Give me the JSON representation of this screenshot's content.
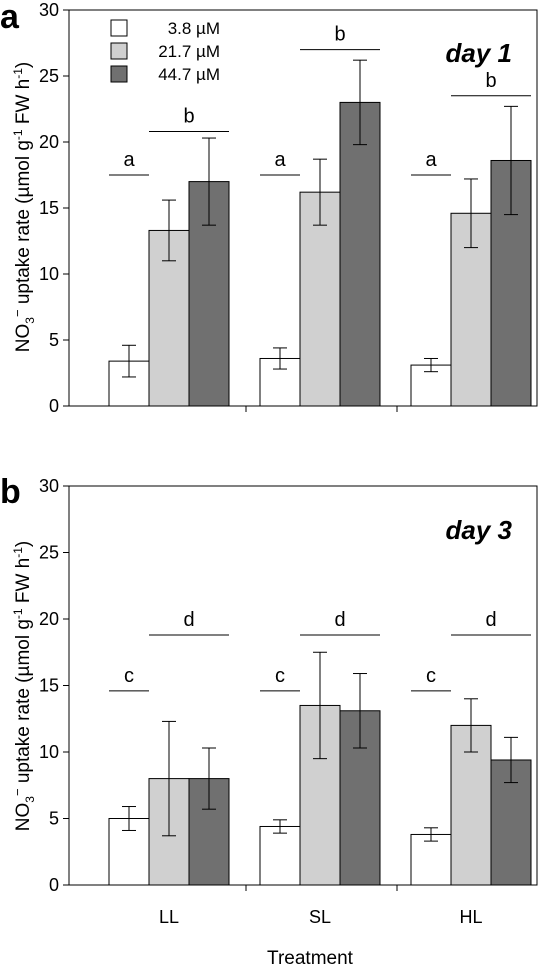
{
  "chart_data": [
    {
      "type": "bar",
      "panel_letter": "a",
      "annotation": "day 1",
      "categories": [
        "LL",
        "SL",
        "HL"
      ],
      "series": [
        {
          "name": "3.8 µM",
          "values": [
            3.4,
            3.6,
            3.1
          ],
          "errors": [
            1.2,
            0.8,
            0.5
          ],
          "color": "#ffffff"
        },
        {
          "name": "21.7 µM",
          "values": [
            13.3,
            16.2,
            14.6
          ],
          "errors": [
            2.3,
            2.5,
            2.6
          ],
          "color": "#d0d0d0"
        },
        {
          "name": "44.7 µM",
          "values": [
            17.0,
            23.0,
            18.6
          ],
          "errors": [
            3.3,
            3.2,
            4.1
          ],
          "color": "#707070"
        }
      ],
      "yticks": [
        "0",
        "5",
        "10",
        "15",
        "20",
        "25",
        "30"
      ],
      "ylim": [
        0,
        30
      ],
      "legend_position": "top-left",
      "sig_labels": [
        {
          "letter": "a",
          "category": "LL",
          "span": "low",
          "level": 17.5
        },
        {
          "letter": "b",
          "category": "LL",
          "span": "high",
          "level": 20.8
        },
        {
          "letter": "a",
          "category": "SL",
          "span": "low",
          "level": 17.5
        },
        {
          "letter": "b",
          "category": "SL",
          "span": "high",
          "level": 27.0
        },
        {
          "letter": "a",
          "category": "HL",
          "span": "low",
          "level": 17.5
        },
        {
          "letter": "b",
          "category": "HL",
          "span": "high",
          "level": 23.5
        }
      ]
    },
    {
      "type": "bar",
      "panel_letter": "b",
      "annotation": "day 3",
      "categories": [
        "LL",
        "SL",
        "HL"
      ],
      "series": [
        {
          "name": "3.8 µM",
          "values": [
            5.0,
            4.4,
            3.8
          ],
          "errors": [
            0.9,
            0.5,
            0.5
          ],
          "color": "#ffffff"
        },
        {
          "name": "21.7 µM",
          "values": [
            8.0,
            13.5,
            12.0
          ],
          "errors": [
            4.3,
            4.0,
            2.0
          ],
          "color": "#d0d0d0"
        },
        {
          "name": "44.7 µM",
          "values": [
            8.0,
            13.1,
            9.4
          ],
          "errors": [
            2.3,
            2.8,
            1.7
          ],
          "color": "#707070"
        }
      ],
      "yticks": [
        "0",
        "5",
        "10",
        "15",
        "20",
        "25",
        "30"
      ],
      "ylim": [
        0,
        30
      ],
      "sig_labels": [
        {
          "letter": "c",
          "category": "LL",
          "span": "low",
          "level": 14.6
        },
        {
          "letter": "d",
          "category": "LL",
          "span": "high",
          "level": 18.8
        },
        {
          "letter": "c",
          "category": "SL",
          "span": "low",
          "level": 14.6
        },
        {
          "letter": "d",
          "category": "SL",
          "span": "high",
          "level": 18.8
        },
        {
          "letter": "c",
          "category": "HL",
          "span": "low",
          "level": 14.6
        },
        {
          "letter": "d",
          "category": "HL",
          "span": "high",
          "level": 18.8
        }
      ]
    }
  ],
  "axis": {
    "ylabel_prefix": "NO",
    "ylabel_subscript": "3",
    "ylabel_superscript": "−",
    "ylabel_main": " uptake rate (µmol g",
    "ylabel_unit_superscript": "-1",
    "ylabel_mid": " FW h",
    "ylabel_end": ")",
    "xlabel": "Treatment"
  }
}
